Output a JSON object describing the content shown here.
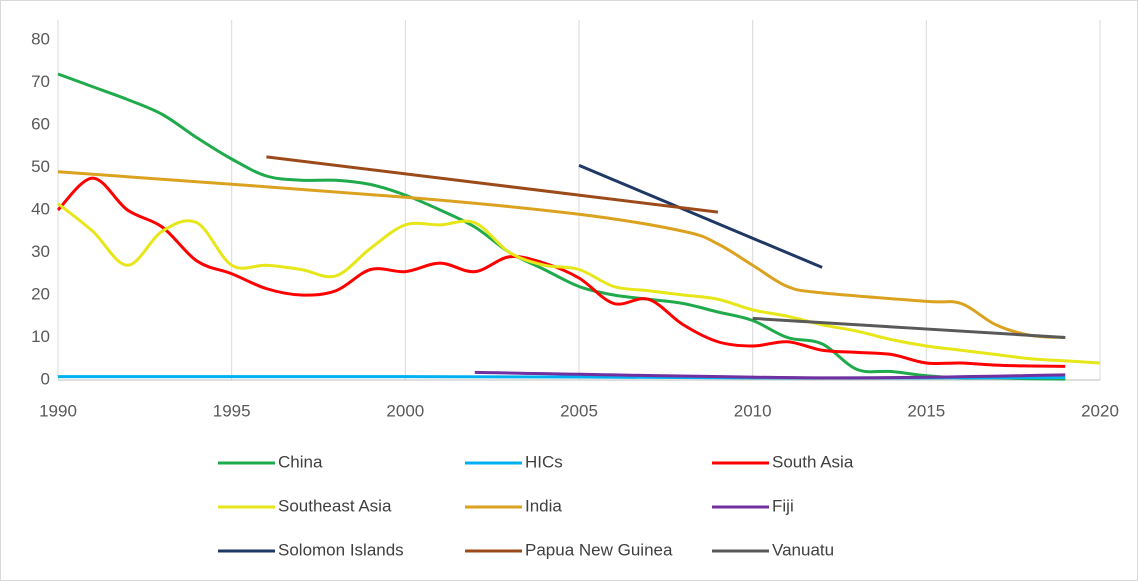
{
  "chart_data": {
    "type": "line",
    "xlim": [
      1990,
      2020
    ],
    "xticks": [
      1990,
      1995,
      2000,
      2005,
      2010,
      2015,
      2020
    ],
    "ylim": [
      0,
      80
    ],
    "yticks": [
      0,
      10,
      20,
      30,
      40,
      50,
      60,
      70,
      80
    ],
    "grid": "x",
    "legend": "bottom",
    "series": [
      {
        "name": "China",
        "color": "#1faa4b",
        "x": [
          1990,
          1991,
          1992,
          1993,
          1994,
          1995,
          1996,
          1997,
          1998,
          1999,
          2000,
          2001,
          2002,
          2003,
          2004,
          2005,
          2006,
          2007,
          2008,
          2009,
          2010,
          2011,
          2012,
          2013,
          2014,
          2015,
          2016,
          2017,
          2018,
          2019
        ],
        "values": [
          72,
          69,
          66,
          62.5,
          57,
          52,
          48,
          47,
          47,
          46,
          43.5,
          40,
          36,
          30,
          26,
          22,
          20,
          19,
          18,
          16,
          14,
          10,
          8.5,
          2.5,
          2,
          1,
          0.5,
          0.5,
          0.3,
          0.2
        ]
      },
      {
        "name": "HICs",
        "color": "#00b0f0",
        "x": [
          1990,
          1995,
          2000,
          2005,
          2010,
          2015,
          2019
        ],
        "values": [
          0.8,
          0.8,
          0.8,
          0.7,
          0.5,
          0.5,
          0.6
        ]
      },
      {
        "name": "South Asia",
        "color": "#ff0000",
        "x": [
          1990,
          1991,
          1992,
          1993,
          1994,
          1995,
          1996,
          1997,
          1998,
          1999,
          2000,
          2001,
          2002,
          2003,
          2004,
          2005,
          2006,
          2007,
          2008,
          2009,
          2010,
          2011,
          2012,
          2013,
          2014,
          2015,
          2016,
          2017,
          2018,
          2019
        ],
        "values": [
          40,
          47.5,
          40,
          36,
          28,
          25,
          21.5,
          20,
          21,
          26,
          25.5,
          27.5,
          25.5,
          29,
          27.5,
          24,
          18,
          19,
          13,
          9,
          8,
          9,
          7,
          6.5,
          6,
          4,
          4,
          3.5,
          3.3,
          3.2
        ]
      },
      {
        "name": "Southeast Asia",
        "color": "#e6e619",
        "x": [
          1990,
          1991,
          1992,
          1993,
          1994,
          1995,
          1996,
          1997,
          1998,
          1999,
          2000,
          2001,
          2002,
          2003,
          2004,
          2005,
          2006,
          2007,
          2008,
          2009,
          2010,
          2011,
          2012,
          2013,
          2014,
          2015,
          2016,
          2017,
          2018,
          2019,
          2020
        ],
        "values": [
          41.5,
          35,
          27,
          35,
          37,
          27,
          27,
          26,
          24.5,
          31,
          36.5,
          36.5,
          37,
          30,
          27,
          26,
          22,
          21,
          20,
          19,
          16.5,
          15,
          13,
          11.5,
          9.5,
          8,
          7,
          6,
          5,
          4.5,
          4
        ]
      },
      {
        "name": "India",
        "color": "#dba21f",
        "x": [
          1990,
          2000,
          2005,
          2008,
          2009,
          2010,
          2011,
          2012,
          2015,
          2016,
          2017,
          2018,
          2019
        ],
        "values": [
          49,
          43,
          39,
          35,
          32,
          27,
          22,
          20.5,
          18.5,
          18,
          13,
          10.5,
          10
        ]
      },
      {
        "name": "Fiji",
        "color": "#7030a0",
        "x": [
          2002,
          2012,
          2019
        ],
        "values": [
          1.8,
          0.5,
          1.2
        ]
      },
      {
        "name": "Solomon Islands",
        "color": "#203864",
        "x": [
          2005,
          2012
        ],
        "values": [
          50.5,
          26.5
        ]
      },
      {
        "name": "Papua New Guinea",
        "color": "#9c4a1a",
        "x": [
          1996,
          2009
        ],
        "values": [
          52.5,
          39.5
        ]
      },
      {
        "name": "Vanuatu",
        "color": "#595959",
        "x": [
          2010,
          2019
        ],
        "values": [
          14.5,
          10
        ]
      }
    ]
  }
}
